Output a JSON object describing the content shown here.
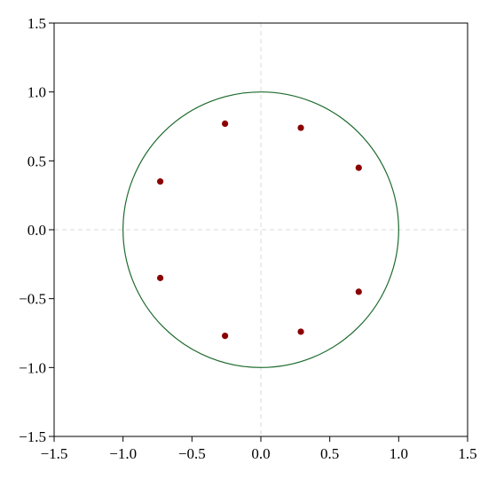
{
  "chart_data": {
    "type": "scatter",
    "title": "",
    "xlabel": "",
    "ylabel": "",
    "xlim": [
      -1.5,
      1.5
    ],
    "ylim": [
      -1.5,
      1.5
    ],
    "x_ticks": [
      -1.5,
      -1.0,
      -0.5,
      0.0,
      0.5,
      1.0,
      1.5
    ],
    "y_ticks": [
      -1.5,
      -1.0,
      -0.5,
      0.0,
      0.5,
      1.0,
      1.5
    ],
    "x_tick_labels": [
      "−1.5",
      "−1.0",
      "−0.5",
      "0.0",
      "0.5",
      "1.0",
      "1.5"
    ],
    "y_tick_labels": [
      "−1.5",
      "−1.0",
      "−0.5",
      "0.0",
      "0.5",
      "1.0",
      "1.5"
    ],
    "reference_lines": {
      "x": 0,
      "y": 0,
      "style": "dashed",
      "color": "#d9d9d9"
    },
    "circle": {
      "center": [
        0,
        0
      ],
      "radius": 1.0,
      "color": "#1e6b2e"
    },
    "series": [
      {
        "color": "#8b0000",
        "points": [
          {
            "x": 0.71,
            "y": 0.45
          },
          {
            "x": 0.29,
            "y": 0.74
          },
          {
            "x": -0.26,
            "y": 0.77
          },
          {
            "x": -0.73,
            "y": 0.35
          },
          {
            "x": -0.73,
            "y": -0.35
          },
          {
            "x": -0.26,
            "y": -0.77
          },
          {
            "x": 0.29,
            "y": -0.74
          },
          {
            "x": 0.71,
            "y": -0.45
          }
        ]
      }
    ]
  }
}
